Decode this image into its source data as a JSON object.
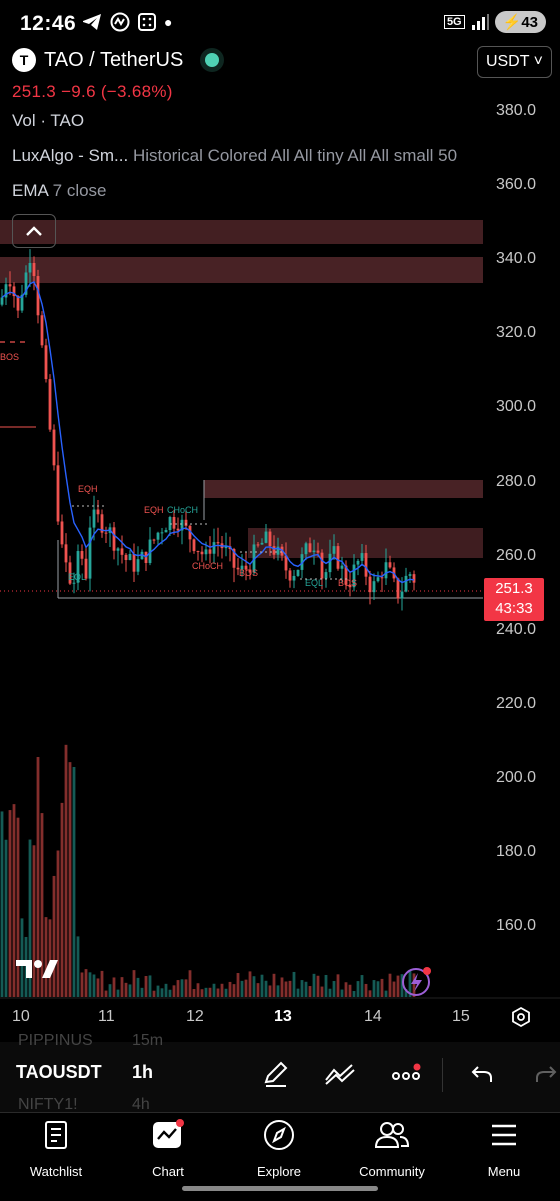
{
  "status_bar": {
    "time": "12:46",
    "network": "5G",
    "battery": "43"
  },
  "symbol": {
    "logo_letter": "T",
    "title": "TAO / TetherUS",
    "currency_button": "USDT ˅",
    "price_line": "251.3  −9.6 (−3.68%)"
  },
  "indicators": {
    "vol": "Vol · TAO",
    "luxalgo_name": "LuxAlgo - Sm...",
    "luxalgo_params": "Historical Colored All All tiny All All small 50",
    "ema_name": "EMA",
    "ema_params": "7 close"
  },
  "chart": {
    "y_ticks": [
      "380.0",
      "360.0",
      "340.0",
      "320.0",
      "300.0",
      "280.0",
      "260.0",
      "240.0",
      "220.0",
      "200.0",
      "180.0",
      "160.0"
    ],
    "x_ticks": [
      "10",
      "11",
      "12",
      "13",
      "14",
      "15"
    ],
    "price_tag": {
      "price": "251.3",
      "countdown": "43:33"
    },
    "annotations": [
      "BOS",
      "EQH",
      "EQL",
      "EQH",
      "CHoCH",
      "CHoCH",
      "BOS",
      "EQL",
      "BOS"
    ],
    "up_color": "#26a69a",
    "down_color": "#ef5350",
    "ema_color": "#2962ff"
  },
  "bottom_toolbar": {
    "ticker_prev": "PIPPINUS",
    "interval_prev": "15m",
    "ticker": "TAOUSDT",
    "interval": "1h",
    "ticker_next": "NIFTY1!",
    "interval_next": "4h"
  },
  "nav": {
    "items": [
      {
        "label": "Watchlist"
      },
      {
        "label": "Chart"
      },
      {
        "label": "Explore"
      },
      {
        "label": "Community"
      },
      {
        "label": "Menu"
      }
    ]
  }
}
